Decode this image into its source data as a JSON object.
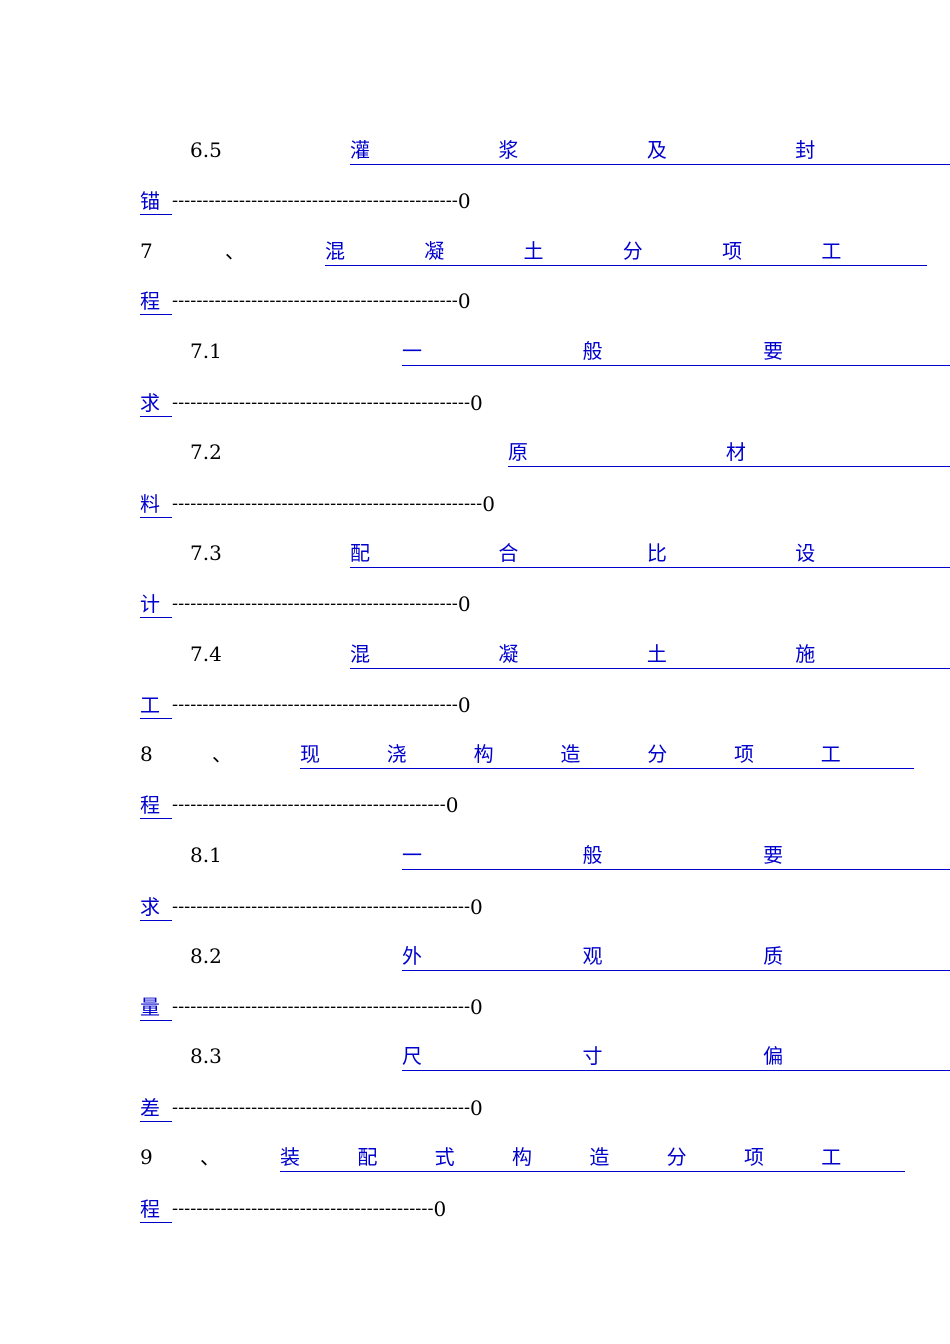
{
  "toc": [
    {
      "num": "6.5",
      "sep": "",
      "chars": [
        "灌",
        "浆",
        "及",
        "封"
      ],
      "tail_char": "锚",
      "dots": "-----------------------------------------------",
      "page": "0"
    },
    {
      "num": "7",
      "sep": "、",
      "chars": [
        "混",
        "凝",
        "土",
        "分",
        "项",
        "工"
      ],
      "tail_char": "程",
      "dots": "-----------------------------------------------",
      "page": "0"
    },
    {
      "num": "7.1",
      "sep": "",
      "chars": [
        "一",
        "般",
        "要"
      ],
      "tail_char": "求",
      "dots": "-------------------------------------------------",
      "page": "0"
    },
    {
      "num": "7.2",
      "sep": "",
      "chars": [
        "原",
        "材"
      ],
      "tail_char": "料",
      "dots": "---------------------------------------------------",
      "page": "0"
    },
    {
      "num": "7.3",
      "sep": "",
      "chars": [
        "配",
        "合",
        "比",
        "设"
      ],
      "tail_char": "计",
      "dots": "-----------------------------------------------",
      "page": "0"
    },
    {
      "num": "7.4",
      "sep": "",
      "chars": [
        "混",
        "凝",
        "土",
        "施"
      ],
      "tail_char": "工",
      "dots": "-----------------------------------------------",
      "page": "0"
    },
    {
      "num": "8",
      "sep": "、",
      "chars": [
        "现",
        "浇",
        "构",
        "造",
        "分",
        "项",
        "工"
      ],
      "tail_char": "程",
      "dots": "---------------------------------------------",
      "page": "0"
    },
    {
      "num": "8.1",
      "sep": "",
      "chars": [
        "一",
        "般",
        "要"
      ],
      "tail_char": "求",
      "dots": "-------------------------------------------------",
      "page": "0"
    },
    {
      "num": "8.2",
      "sep": "",
      "chars": [
        "外",
        "观",
        "质"
      ],
      "tail_char": "量",
      "dots": "-------------------------------------------------",
      "page": "0"
    },
    {
      "num": "8.3",
      "sep": "",
      "chars": [
        "尺",
        "寸",
        "偏"
      ],
      "tail_char": "差",
      "dots": "-------------------------------------------------",
      "page": "0"
    },
    {
      "num": "9",
      "sep": "、",
      "chars": [
        "装",
        "配",
        "式",
        "构",
        "造",
        "分",
        "项",
        "工"
      ],
      "tail_char": "程",
      "dots": "-------------------------------------------",
      "page": "0"
    }
  ]
}
